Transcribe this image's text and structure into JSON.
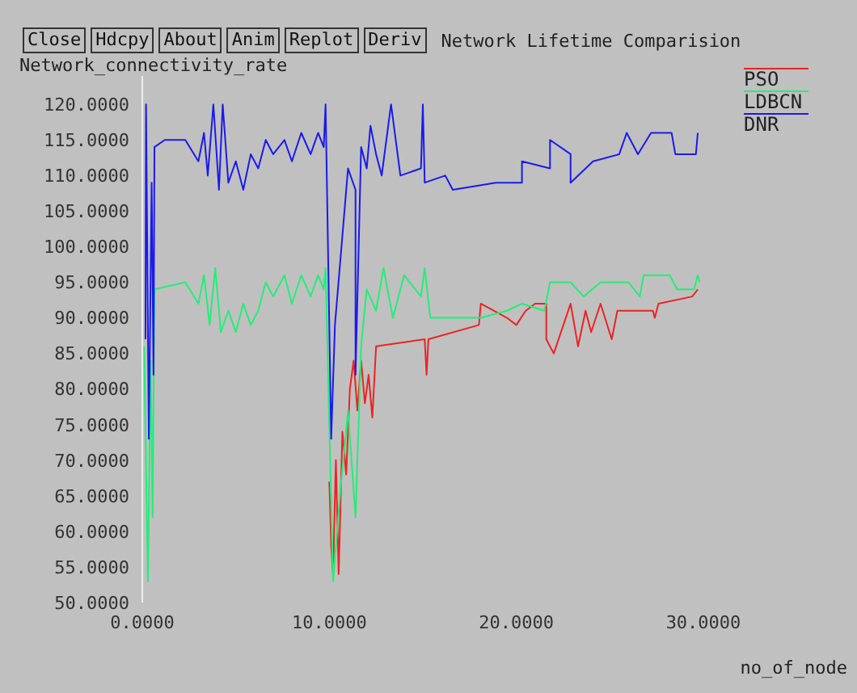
{
  "chart_data": {
    "type": "line",
    "title": "Network Lifetime Comparision",
    "xlabel": "no_of_node",
    "ylabel": "Network_connectivity_rate",
    "annotations": [
      "Close",
      "Hdcpy",
      "About",
      "Anim",
      "Replot",
      "Deriv"
    ],
    "xlim": [
      0,
      30
    ],
    "xticks": [
      {
        "value": 0,
        "label": "0.0000"
      },
      {
        "value": 10,
        "label": "10.0000"
      },
      {
        "value": 20,
        "label": "20.0000"
      },
      {
        "value": 30,
        "label": "30.0000"
      }
    ],
    "ylim": [
      50,
      124
    ],
    "yticks": [
      {
        "value": 50,
        "label": "50.0000"
      },
      {
        "value": 55,
        "label": "55.0000"
      },
      {
        "value": 60,
        "label": "60.0000"
      },
      {
        "value": 65,
        "label": "65.0000"
      },
      {
        "value": 70,
        "label": "70.0000"
      },
      {
        "value": 75,
        "label": "75.0000"
      },
      {
        "value": 80,
        "label": "80.0000"
      },
      {
        "value": 85,
        "label": "85.0000"
      },
      {
        "value": 90,
        "label": "90.0000"
      },
      {
        "value": 95,
        "label": "95.0000"
      },
      {
        "value": 100,
        "label": "100.0000"
      },
      {
        "value": 105,
        "label": "105.0000"
      },
      {
        "value": 110,
        "label": "110.0000"
      },
      {
        "value": 115,
        "label": "115.0000"
      },
      {
        "value": 120,
        "label": "120.0000"
      }
    ],
    "grid": false,
    "legend": "top right",
    "series": [
      {
        "name": "PSO",
        "color": "#ee2222",
        "x": [
          10.0,
          10.1,
          10.2,
          10.35,
          10.5,
          10.7,
          10.9,
          11.1,
          11.3,
          11.5,
          11.7,
          11.9,
          12.1,
          12.3,
          12.5,
          15.1,
          15.2,
          15.3,
          18.0,
          18.1,
          19.5,
          20.0,
          20.5,
          21.0,
          21.6,
          21.6,
          22.0,
          22.9,
          23.3,
          23.7,
          24.0,
          24.5,
          25.1,
          25.4,
          27.3,
          27.4,
          27.6,
          29.4,
          29.7
        ],
        "values": [
          67,
          58,
          54,
          70,
          54,
          74,
          68,
          80,
          84,
          77,
          84,
          78,
          82,
          76,
          86,
          87,
          82,
          87,
          89,
          92,
          90,
          89,
          91,
          92,
          92,
          87,
          85,
          92,
          86,
          91,
          88,
          92,
          87,
          91,
          91,
          90,
          92,
          93,
          94
        ]
      },
      {
        "name": "LDBCN",
        "color": "#22ee77",
        "x": [
          0.1,
          0.3,
          0.45,
          0.55,
          0.65,
          2.3,
          3.0,
          3.3,
          3.6,
          3.9,
          4.2,
          4.6,
          5.0,
          5.4,
          5.8,
          6.2,
          6.6,
          7.0,
          7.6,
          8.0,
          8.5,
          9.0,
          9.4,
          9.7,
          9.8,
          10.2,
          10.6,
          11.0,
          11.4,
          11.7,
          12.0,
          12.5,
          12.9,
          13.4,
          14.0,
          14.9,
          15.1,
          15.4,
          16.6,
          18.1,
          19.5,
          20.3,
          21.5,
          21.8,
          22.9,
          23.6,
          24.5,
          26.0,
          26.6,
          26.8,
          28.2,
          28.6,
          29.5,
          29.7,
          29.8
        ],
        "values": [
          86,
          53,
          84,
          62,
          94,
          95,
          92,
          96,
          89,
          97,
          88,
          91,
          88,
          92,
          89,
          91,
          95,
          93,
          96,
          92,
          96,
          93,
          96,
          94,
          97,
          53,
          66,
          77,
          62,
          86,
          94,
          91,
          97,
          90,
          96,
          93,
          97,
          90,
          90,
          90,
          91,
          92,
          91,
          95,
          95,
          93,
          95,
          95,
          93,
          96,
          96,
          94,
          94,
          96,
          95
        ]
      },
      {
        "name": "DNR",
        "color": "#1a1aee",
        "x": [
          0.17,
          0.2,
          0.35,
          0.5,
          0.6,
          0.65,
          1.2,
          2.3,
          3.0,
          3.3,
          3.5,
          3.8,
          4.1,
          4.3,
          4.6,
          5.0,
          5.4,
          5.8,
          6.2,
          6.6,
          7.0,
          7.6,
          8.0,
          8.5,
          9.0,
          9.4,
          9.7,
          9.8,
          10.1,
          10.3,
          11.0,
          11.4,
          11.4,
          11.7,
          12.0,
          12.2,
          12.5,
          12.8,
          13.3,
          13.8,
          14.9,
          15.0,
          15.1,
          16.2,
          16.6,
          18.9,
          20.3,
          20.3,
          21.8,
          21.8,
          22.9,
          22.9,
          24.1,
          25.5,
          25.9,
          26.5,
          27.2,
          28.3,
          28.5,
          29.6,
          29.7
        ],
        "values": [
          87,
          120,
          73,
          109,
          82,
          114,
          115,
          115,
          112,
          116,
          110,
          120,
          108,
          120,
          109,
          112,
          108,
          113,
          111,
          115,
          113,
          115,
          112,
          116,
          113,
          116,
          114,
          120,
          73,
          89,
          111,
          108,
          82,
          114,
          111,
          117,
          113,
          110,
          120,
          110,
          111,
          120,
          109,
          110,
          108,
          109,
          109,
          112,
          111,
          115,
          113,
          109,
          112,
          113,
          116,
          113,
          116,
          116,
          113,
          113,
          116
        ]
      }
    ]
  }
}
